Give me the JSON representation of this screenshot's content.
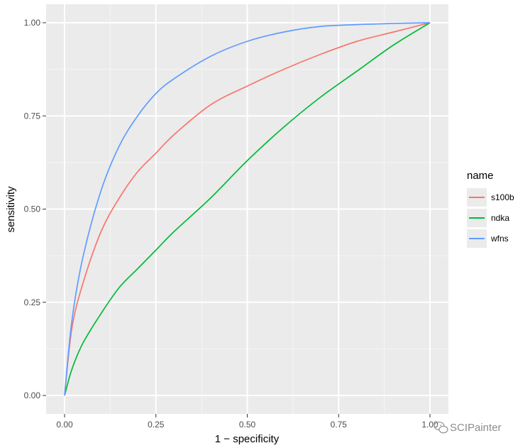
{
  "chart_data": {
    "type": "line",
    "title": "",
    "xlabel": "1 − specificity",
    "ylabel": "sensitivity",
    "xlim": [
      0,
      1
    ],
    "ylim": [
      0,
      1
    ],
    "x_ticks": [
      0,
      0.25,
      0.5,
      0.75,
      1
    ],
    "x_tick_labels": [
      "0.00",
      "0.25",
      "0.50",
      "0.75",
      "1.00"
    ],
    "y_ticks": [
      0,
      0.25,
      0.5,
      0.75,
      1
    ],
    "y_tick_labels": [
      "0.00",
      "0.25",
      "0.50",
      "0.75",
      "1.00"
    ],
    "grid": true,
    "legend_position": "right",
    "legend_title": "name",
    "x": [
      0,
      0.02,
      0.05,
      0.1,
      0.15,
      0.2,
      0.25,
      0.3,
      0.4,
      0.5,
      0.6,
      0.7,
      0.8,
      0.9,
      1.0
    ],
    "series": [
      {
        "name": "s100b",
        "color": "#F8766D",
        "values": [
          0,
          0.18,
          0.3,
          0.44,
          0.53,
          0.6,
          0.65,
          0.7,
          0.78,
          0.83,
          0.875,
          0.915,
          0.95,
          0.975,
          1.0
        ]
      },
      {
        "name": "ndka",
        "color": "#00BA38",
        "values": [
          0,
          0.07,
          0.14,
          0.22,
          0.29,
          0.34,
          0.39,
          0.44,
          0.53,
          0.63,
          0.72,
          0.8,
          0.87,
          0.94,
          1.0
        ]
      },
      {
        "name": "wfns",
        "color": "#619CFF",
        "values": [
          0,
          0.2,
          0.37,
          0.55,
          0.67,
          0.75,
          0.81,
          0.85,
          0.91,
          0.95,
          0.975,
          0.99,
          0.995,
          0.998,
          1.0
        ]
      }
    ]
  },
  "watermark": {
    "text": "SCIPainter",
    "icon": "wechat-icon"
  }
}
